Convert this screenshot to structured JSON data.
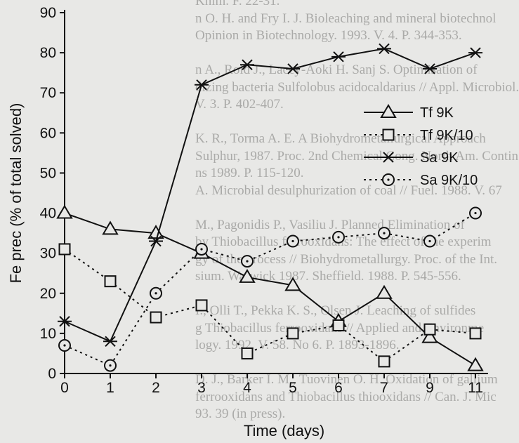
{
  "background_text_lines": [
    "Khim. F. 22-31.",
    "n O. H. and Fry I. J. Bioleaching and mineral biotechnol",
    "Opinion in Biotechnology. 1993. V. 4. P. 344-353.",
    "",
    "n A., Rold J., Lacey-Aoki H. Sanj S. Optimisation of",
    "dizing bacteria Sulfolobus acidocaldarius // Appl. Microbiol.",
    "V. 3. P. 402-407.",
    "",
    "K. R., Torma A. E. A Biohydrometallurgical Approach",
    "Sulphur, 1987. Proc. 2nd Chemical Cong. North Am. Contin",
    "ns 1989. P. 115-120.",
    "A. Microbial desulphurization of coal // Fuel. 1988. V. 67",
    "",
    "M., Pagonidis P., Vasiliu J. Planned Elimination of",
    "by Thiobacillus ferrooxidans: The effect of the experim",
    "gy of the process // Biohydrometallurgy. Proc. of the Int.",
    "sium. Warwick 1987. Sheffield. 1988. P. 545-556.",
    "",
    "I., Olli T., Pekka K. S., Olsen J. Leaching of sulfides",
    "g Thiobacillus ferrooxidans // Applied and Environme",
    "logy. 1992. V. 58. No 6. P. 1893-1896.",
    "",
    "D. J., Barker I. M., Tuovinen O. H. Oxidation of gallium",
    "ferrooxidans and Thiobacillus thiooxidans // Can. J. Mic",
    "93. 39 (in press)."
  ],
  "chart_data": {
    "type": "line",
    "title": "",
    "xlabel": "Time (days)",
    "ylabel": "Fe prec (% of total solved)",
    "categories": [
      "0",
      "1",
      "2",
      "3",
      "4",
      "5",
      "6",
      "7",
      "9",
      "11"
    ],
    "ylim": [
      0,
      90
    ],
    "yticks": [
      0,
      10,
      20,
      30,
      40,
      50,
      60,
      70,
      80,
      90
    ],
    "grid": false,
    "legend_position": "right",
    "series": [
      {
        "name": "Tf 9K",
        "marker": "triangle",
        "line": "solid",
        "values": [
          40,
          36,
          35,
          30,
          24,
          22,
          13,
          20,
          9,
          2
        ]
      },
      {
        "name": "Tf 9K/10",
        "marker": "square",
        "line": "dotted",
        "values": [
          31,
          23,
          14,
          17,
          5,
          10,
          12,
          3,
          11,
          10
        ]
      },
      {
        "name": "Sa 9K",
        "marker": "asterisk",
        "line": "solid",
        "values": [
          13,
          8,
          33,
          72,
          77,
          76,
          79,
          81,
          76,
          80
        ]
      },
      {
        "name": "Sa 9K/10",
        "marker": "circle",
        "line": "dotted",
        "values": [
          7,
          2,
          20,
          31,
          28,
          33,
          34,
          35,
          33,
          40
        ]
      }
    ]
  }
}
